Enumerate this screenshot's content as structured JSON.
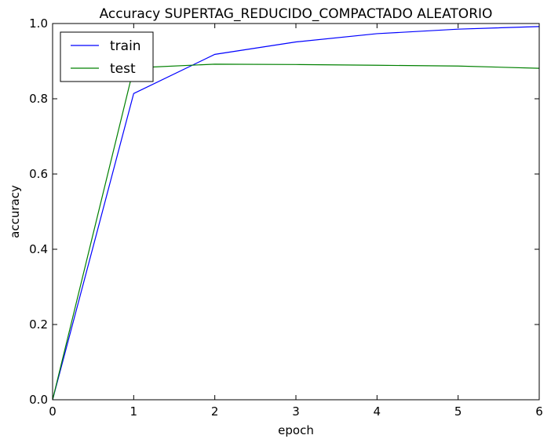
{
  "chart_data": {
    "type": "line",
    "title": "Accuracy SUPERTAG_REDUCIDO_COMPACTADO ALEATORIO",
    "xlabel": "epoch",
    "ylabel": "accuracy",
    "xlim": [
      0,
      6
    ],
    "ylim": [
      0.0,
      1.0
    ],
    "x_ticks": [
      "0",
      "1",
      "2",
      "3",
      "4",
      "5",
      "6"
    ],
    "y_ticks": [
      "0.0",
      "0.2",
      "0.4",
      "0.6",
      "0.8",
      "1.0"
    ],
    "x": [
      0,
      1,
      2,
      3,
      4,
      5,
      6
    ],
    "series": [
      {
        "name": "train",
        "color": "#0000ff",
        "values": [
          0.0,
          0.814,
          0.918,
          0.951,
          0.973,
          0.985,
          0.992
        ]
      },
      {
        "name": "test",
        "color": "#008000",
        "values": [
          0.0,
          0.882,
          0.892,
          0.891,
          0.889,
          0.887,
          0.881
        ]
      }
    ],
    "grid": false,
    "legend_position": "upper-left"
  }
}
